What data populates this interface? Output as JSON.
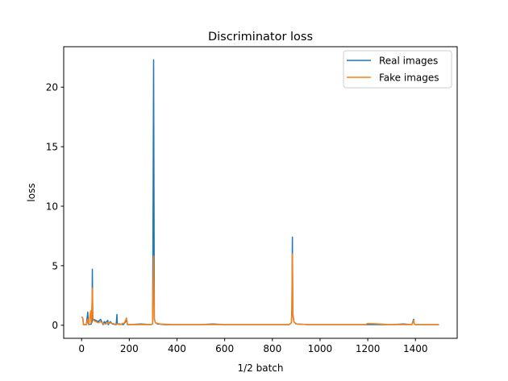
{
  "chart_data": {
    "type": "line",
    "title": "Discriminator loss",
    "xlabel": "1/2 batch",
    "ylabel": "loss",
    "xlim": [
      -75,
      1575
    ],
    "ylim": [
      -1.1,
      23.4
    ],
    "xticks": [
      0,
      200,
      400,
      600,
      800,
      1000,
      1200,
      1400
    ],
    "yticks": [
      0,
      5,
      10,
      15,
      20
    ],
    "grid": false,
    "legend_position": "top-right",
    "series": [
      {
        "name": "Real images",
        "color": "#1f77b4",
        "x": [
          0,
          5,
          8,
          20,
          26,
          28,
          30,
          40,
          44,
          45,
          47,
          50,
          60,
          70,
          80,
          90,
          95,
          100,
          110,
          112,
          120,
          130,
          145,
          148,
          150,
          160,
          175,
          185,
          188,
          192,
          200,
          250,
          290,
          298,
          302,
          305,
          310,
          320,
          350,
          400,
          500,
          550,
          600,
          700,
          800,
          870,
          880,
          882,
          884,
          886,
          890,
          900,
          950,
          1000,
          1100,
          1200,
          1300,
          1350,
          1385,
          1392,
          1395,
          1400,
          1499
        ],
        "y": [
          0.7,
          0.6,
          0.05,
          0.05,
          1.1,
          0.1,
          0.05,
          0.1,
          0.3,
          4.7,
          0.5,
          0.5,
          0.4,
          0.3,
          0.5,
          0.05,
          0.3,
          0.2,
          0.4,
          0.05,
          0.3,
          0.1,
          0.05,
          0.9,
          0.1,
          0.1,
          0.05,
          0.3,
          0.6,
          0.05,
          0.05,
          0.1,
          0.05,
          0.1,
          22.3,
          0.5,
          0.2,
          0.1,
          0.05,
          0.05,
          0.05,
          0.1,
          0.05,
          0.05,
          0.05,
          0.05,
          0.2,
          1.5,
          7.4,
          1.0,
          0.3,
          0.1,
          0.05,
          0.05,
          0.05,
          0.05,
          0.05,
          0.1,
          0.05,
          0.5,
          0.1,
          0.05,
          0.05
        ]
      },
      {
        "name": "Fake images",
        "color": "#ff7f0e",
        "x": [
          0,
          5,
          8,
          20,
          26,
          30,
          38,
          40,
          43,
          45,
          47,
          50,
          60,
          70,
          80,
          90,
          100,
          120,
          140,
          150,
          160,
          180,
          188,
          192,
          200,
          250,
          290,
          298,
          302,
          305,
          310,
          330,
          400,
          500,
          600,
          700,
          800,
          870,
          880,
          882,
          884,
          886,
          890,
          900,
          950,
          1000,
          1100,
          1190,
          1200,
          1300,
          1385,
          1392,
          1395,
          1400,
          1499
        ],
        "y": [
          0.7,
          0.6,
          0.05,
          0.05,
          0.5,
          0.05,
          1.2,
          0.2,
          1.5,
          3.1,
          0.5,
          0.4,
          0.3,
          0.2,
          0.3,
          0.15,
          0.1,
          0.2,
          0.1,
          0.1,
          0.05,
          0.2,
          0.6,
          0.1,
          0.05,
          0.05,
          0.05,
          0.1,
          5.8,
          0.5,
          0.2,
          0.1,
          0.05,
          0.05,
          0.05,
          0.05,
          0.05,
          0.05,
          0.2,
          1.0,
          6.0,
          0.8,
          0.3,
          0.1,
          0.05,
          0.05,
          0.05,
          0.05,
          0.15,
          0.05,
          0.05,
          0.4,
          0.1,
          0.05,
          0.05
        ]
      }
    ]
  }
}
